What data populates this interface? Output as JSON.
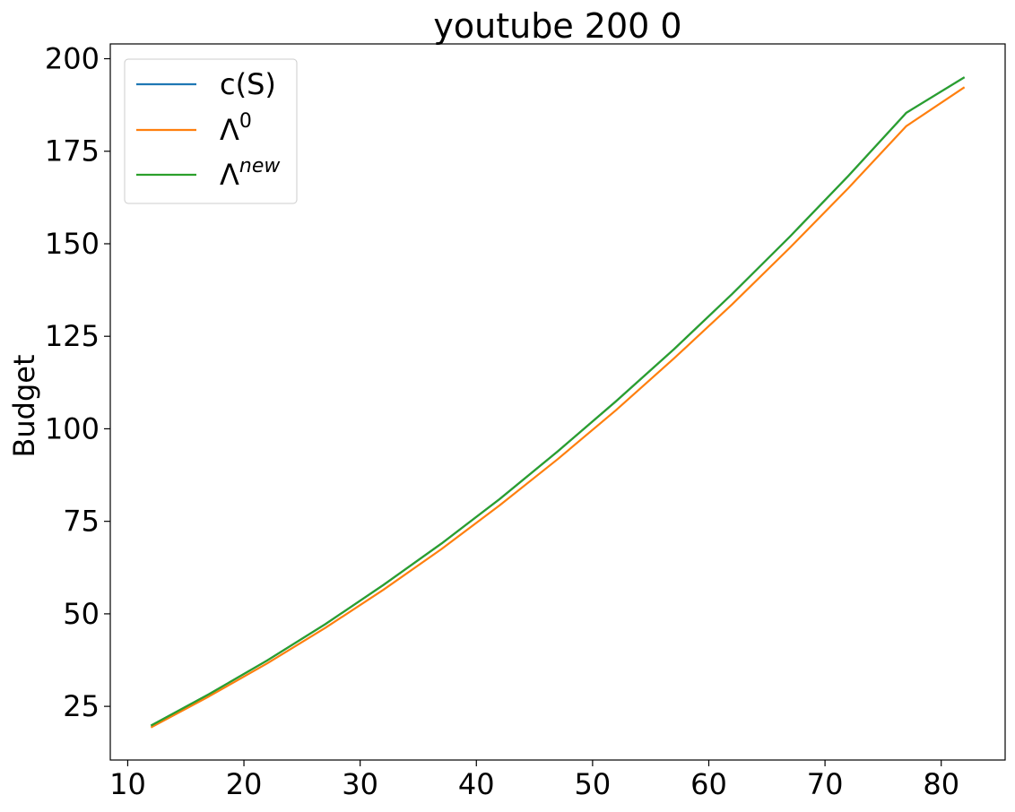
{
  "chart_data": {
    "type": "line",
    "title": "youtube 200 0",
    "xlabel": "",
    "ylabel": "Budget",
    "xlim": [
      8.5,
      85.5
    ],
    "ylim": [
      10.5,
      204.0
    ],
    "xticks": [
      10,
      20,
      30,
      40,
      50,
      60,
      70,
      80
    ],
    "yticks": [
      25,
      50,
      75,
      100,
      125,
      150,
      175,
      200
    ],
    "grid": false,
    "legend_position": "upper-left",
    "series": [
      {
        "name": "c(S)",
        "color": "#1f77b4",
        "x": [
          12,
          17,
          22,
          27,
          32,
          37,
          42,
          47,
          52,
          57,
          62,
          67,
          72,
          77,
          82
        ],
        "y": [
          19.8,
          28.3,
          37.4,
          47.2,
          57.8,
          69.0,
          81.0,
          93.9,
          107.4,
          121.5,
          136.4,
          152.0,
          168.3,
          185.4,
          195.0
        ]
      },
      {
        "name": "Λ",
        "name_sup": "0",
        "color": "#ff7f0e",
        "x": [
          12,
          17,
          22,
          27,
          32,
          37,
          42,
          47,
          52,
          57,
          62,
          67,
          72,
          77,
          82
        ],
        "y": [
          19.3,
          27.7,
          36.6,
          46.2,
          56.5,
          67.5,
          79.3,
          91.8,
          105.0,
          119.0,
          133.6,
          149.0,
          165.0,
          181.8,
          192.3
        ]
      },
      {
        "name": "Λ",
        "name_sup": "new",
        "color": "#2ca02c",
        "x": [
          12,
          17,
          22,
          27,
          32,
          37,
          42,
          47,
          52,
          57,
          62,
          67,
          72,
          77,
          82
        ],
        "y": [
          19.8,
          28.3,
          37.4,
          47.2,
          57.8,
          69.0,
          81.0,
          93.9,
          107.4,
          121.5,
          136.4,
          152.0,
          168.3,
          185.4,
          195.0
        ]
      }
    ]
  }
}
